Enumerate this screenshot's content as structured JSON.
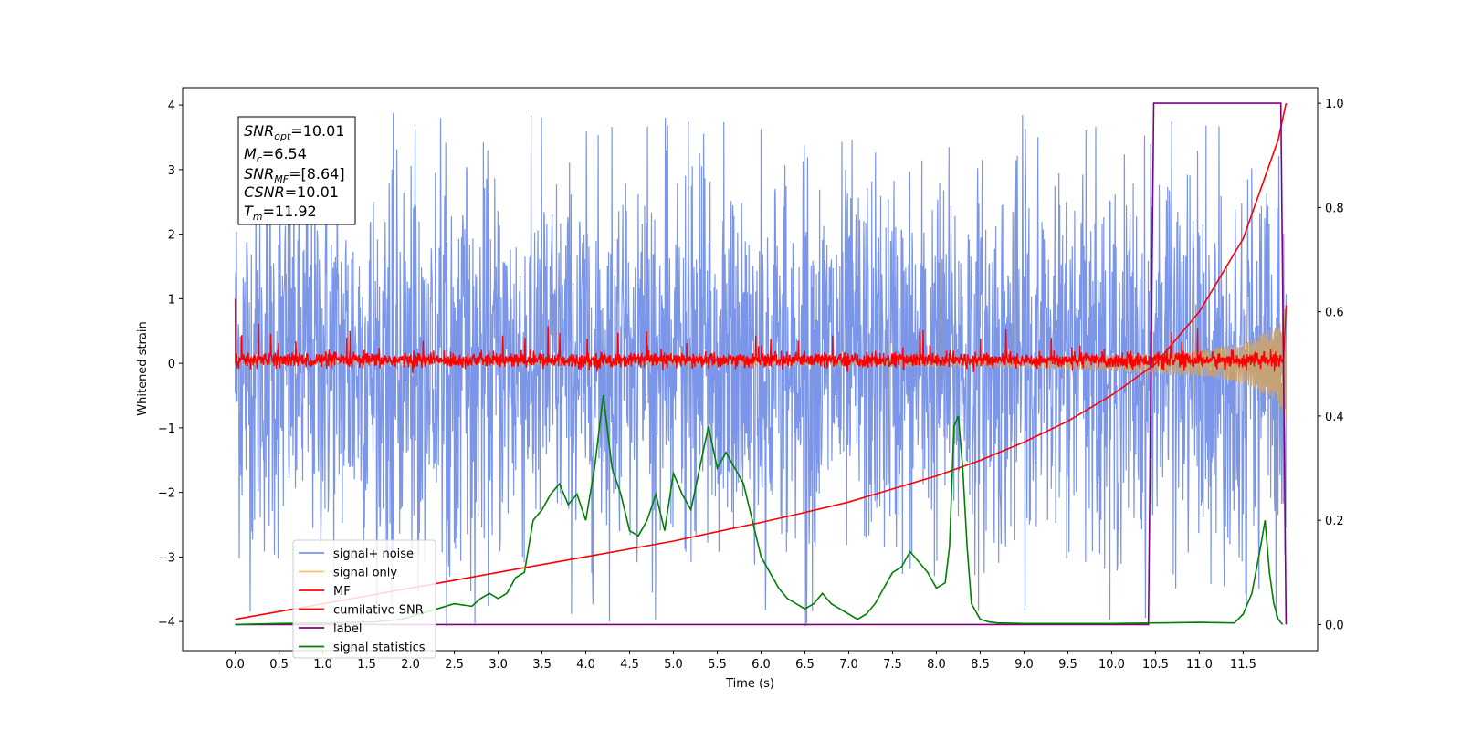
{
  "chart_data": {
    "type": "line",
    "xlabel": "Time (s)",
    "ylabel": "Whitened strain",
    "xlim": [
      -0.6,
      12.35
    ],
    "ylim": [
      -4.45,
      4.27
    ],
    "y2lim": [
      -0.05,
      1.03
    ],
    "x_ticks": [
      0.0,
      0.5,
      1.0,
      1.5,
      2.0,
      2.5,
      3.0,
      3.5,
      4.0,
      4.5,
      5.0,
      5.5,
      6.0,
      6.5,
      7.0,
      7.5,
      8.0,
      8.5,
      9.0,
      9.5,
      10.0,
      10.5,
      11.0,
      11.5
    ],
    "x_tick_labels": [
      "0.0",
      "0.5",
      "1.0",
      "1.5",
      "2.0",
      "2.5",
      "3.0",
      "3.5",
      "4.0",
      "4.5",
      "5.0",
      "5.5",
      "6.0",
      "6.5",
      "7.0",
      "7.5",
      "8.0",
      "8.5",
      "9.0",
      "9.5",
      "10.0",
      "10.5",
      "11.0",
      "11.5"
    ],
    "y_ticks": [
      -4,
      -3,
      -2,
      -1,
      0,
      1,
      2,
      3,
      4
    ],
    "y_tick_labels": [
      "−4",
      "−3",
      "−2",
      "−1",
      "0",
      "1",
      "2",
      "3",
      "4"
    ],
    "y2_ticks": [
      0.0,
      0.2,
      0.4,
      0.6,
      0.8,
      1.0
    ],
    "y2_tick_labels": [
      "0.0",
      "0.2",
      "0.4",
      "0.6",
      "0.8",
      "1.0"
    ],
    "grid": false,
    "legend_position": "lower-left",
    "annotation": {
      "snr_opt": {
        "base": "SNR",
        "sub": "opt",
        "value": "=10.01"
      },
      "mc": {
        "base": "M",
        "sub": "c",
        "value": "=6.54"
      },
      "snr_mf": {
        "base": "SNR",
        "sub": "MF",
        "value": "=[8.64]"
      },
      "csnr": {
        "base": "CSNR",
        "sub": "",
        "value": "=10.01"
      },
      "tm": {
        "base": "T",
        "sub": "m",
        "value": "=11.92"
      }
    },
    "series": [
      {
        "name": "signal+ noise",
        "axis": "left",
        "color": "#7b96e8",
        "style": "noise",
        "t_range": [
          0.0,
          11.99
        ],
        "band": [
          -2.2,
          2.2
        ],
        "peak_max": 3.9,
        "peak_min": -4.1
      },
      {
        "name": "signal only",
        "axis": "left",
        "color": "#f5c470",
        "style": "chirp",
        "t_range": [
          0.0,
          11.99
        ],
        "envelope": [
          [
            0.0,
            0.02
          ],
          [
            6.0,
            0.03
          ],
          [
            9.0,
            0.06
          ],
          [
            10.5,
            0.15
          ],
          [
            11.0,
            0.2
          ],
          [
            11.5,
            0.3
          ],
          [
            11.9,
            0.6
          ],
          [
            11.99,
            0.9
          ]
        ]
      },
      {
        "name": "MF",
        "axis": "left",
        "color": "#ff0000",
        "style": "noise-small",
        "t_range": [
          0.0,
          11.99
        ],
        "band": [
          -0.15,
          0.25
        ],
        "start_value": 1.0
      },
      {
        "name": "cumilative SNR",
        "axis": "right",
        "color": "#ff0000",
        "style": "line",
        "x": [
          0.0,
          0.5,
          1.0,
          1.5,
          2.0,
          2.5,
          3.0,
          3.5,
          4.0,
          4.5,
          5.0,
          5.5,
          6.0,
          6.5,
          7.0,
          7.5,
          8.0,
          8.5,
          9.0,
          9.5,
          10.0,
          10.5,
          11.0,
          11.5,
          11.9,
          11.99
        ],
        "y": [
          0.01,
          0.025,
          0.04,
          0.055,
          0.07,
          0.085,
          0.1,
          0.115,
          0.13,
          0.145,
          0.16,
          0.178,
          0.196,
          0.215,
          0.235,
          0.26,
          0.285,
          0.315,
          0.35,
          0.39,
          0.44,
          0.5,
          0.6,
          0.74,
          0.93,
          1.0
        ]
      },
      {
        "name": "label",
        "axis": "right",
        "color": "#800080",
        "style": "line",
        "x": [
          0.0,
          10.42,
          10.48,
          11.93,
          11.99
        ],
        "y": [
          0.0,
          0.0,
          1.0,
          1.0,
          0.0
        ]
      },
      {
        "name": "signal statistics",
        "axis": "right",
        "color": "#008000",
        "style": "line",
        "x": [
          0.0,
          0.5,
          1.0,
          1.3,
          1.6,
          1.9,
          2.1,
          2.3,
          2.5,
          2.7,
          2.8,
          2.9,
          3.0,
          3.1,
          3.2,
          3.3,
          3.4,
          3.5,
          3.6,
          3.7,
          3.8,
          3.9,
          4.0,
          4.1,
          4.2,
          4.3,
          4.4,
          4.5,
          4.6,
          4.7,
          4.8,
          4.9,
          5.0,
          5.1,
          5.2,
          5.3,
          5.4,
          5.5,
          5.6,
          5.7,
          5.8,
          5.9,
          6.0,
          6.1,
          6.2,
          6.3,
          6.4,
          6.5,
          6.6,
          6.7,
          6.8,
          6.9,
          7.0,
          7.1,
          7.2,
          7.3,
          7.4,
          7.5,
          7.6,
          7.7,
          7.8,
          7.9,
          8.0,
          8.1,
          8.15,
          8.2,
          8.25,
          8.3,
          8.35,
          8.4,
          8.5,
          8.6,
          8.7,
          9.0,
          10.0,
          10.5,
          11.0,
          11.4,
          11.5,
          11.6,
          11.7,
          11.75,
          11.8,
          11.85,
          11.9,
          11.95
        ],
        "y": [
          0.0,
          0.002,
          0.003,
          0.004,
          0.005,
          0.01,
          0.02,
          0.03,
          0.04,
          0.035,
          0.05,
          0.06,
          0.05,
          0.06,
          0.09,
          0.1,
          0.2,
          0.22,
          0.25,
          0.27,
          0.23,
          0.25,
          0.2,
          0.3,
          0.44,
          0.3,
          0.25,
          0.18,
          0.17,
          0.2,
          0.25,
          0.18,
          0.29,
          0.25,
          0.22,
          0.3,
          0.38,
          0.3,
          0.33,
          0.3,
          0.27,
          0.2,
          0.13,
          0.1,
          0.07,
          0.05,
          0.04,
          0.03,
          0.04,
          0.06,
          0.04,
          0.03,
          0.02,
          0.01,
          0.02,
          0.04,
          0.07,
          0.1,
          0.11,
          0.14,
          0.12,
          0.1,
          0.07,
          0.08,
          0.15,
          0.38,
          0.4,
          0.3,
          0.15,
          0.04,
          0.01,
          0.005,
          0.003,
          0.002,
          0.002,
          0.003,
          0.004,
          0.003,
          0.02,
          0.06,
          0.15,
          0.2,
          0.1,
          0.04,
          0.01,
          0.0
        ]
      }
    ]
  }
}
